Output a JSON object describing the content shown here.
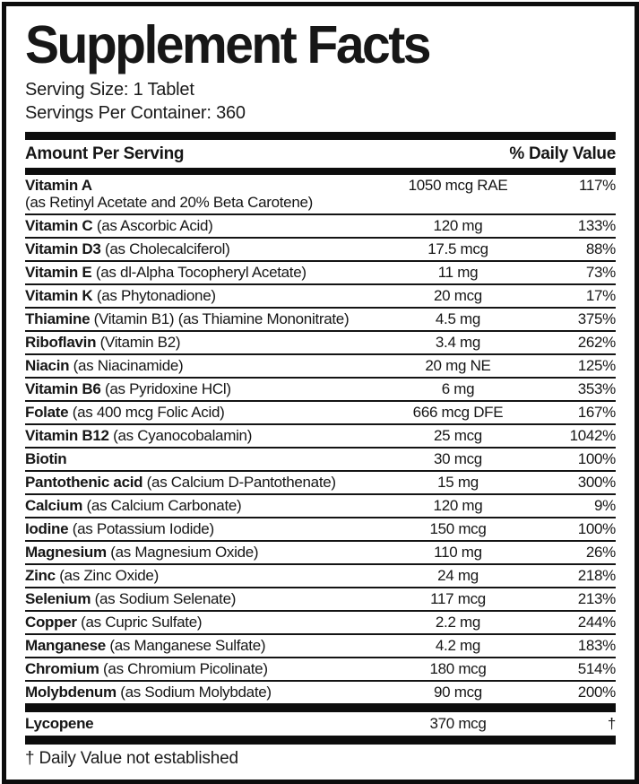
{
  "label": {
    "title": "Supplement Facts",
    "serving_size": "Serving Size: 1 Tablet",
    "servings_per_container": "Servings Per Container: 360",
    "header": {
      "amount_per_serving": "Amount Per Serving",
      "daily_value": "% Daily Value"
    },
    "rows": [
      {
        "name": "Vitamin A",
        "detail": "",
        "sub": "(as Retinyl Acetate and 20% Beta Carotene)",
        "amount": "1050 mcg RAE",
        "dv": "117%"
      },
      {
        "name": "Vitamin C",
        "detail": "(as Ascorbic Acid)",
        "amount": "120 mg",
        "dv": "133%"
      },
      {
        "name": "Vitamin D3",
        "detail": "(as Cholecalciferol)",
        "amount": "17.5 mcg",
        "dv": "88%"
      },
      {
        "name": "Vitamin E",
        "detail": "(as dl-Alpha Tocopheryl Acetate)",
        "amount": "11 mg",
        "dv": "73%"
      },
      {
        "name": "Vitamin K",
        "detail": "(as Phytonadione)",
        "amount": "20 mcg",
        "dv": "17%"
      },
      {
        "name": "Thiamine",
        "detail": "(Vitamin B1) (as Thiamine Mononitrate)",
        "amount": "4.5 mg",
        "dv": "375%"
      },
      {
        "name": "Riboflavin",
        "detail": "(Vitamin B2)",
        "amount": "3.4 mg",
        "dv": "262%"
      },
      {
        "name": "Niacin",
        "detail": "(as Niacinamide)",
        "amount": "20 mg NE",
        "dv": "125%"
      },
      {
        "name": "Vitamin B6",
        "detail": "(as Pyridoxine HCl)",
        "amount": "6 mg",
        "dv": "353%"
      },
      {
        "name": "Folate",
        "detail": "(as 400 mcg Folic Acid)",
        "amount": "666 mcg DFE",
        "dv": "167%"
      },
      {
        "name": "Vitamin B12",
        "detail": "(as Cyanocobalamin)",
        "amount": "25 mcg",
        "dv": "1042%"
      },
      {
        "name": "Biotin",
        "detail": "",
        "amount": "30 mcg",
        "dv": "100%"
      },
      {
        "name": "Pantothenic acid",
        "detail": "(as Calcium D-Pantothenate)",
        "amount": "15 mg",
        "dv": "300%"
      },
      {
        "name": "Calcium",
        "detail": "(as Calcium Carbonate)",
        "amount": "120 mg",
        "dv": "9%"
      },
      {
        "name": "Iodine",
        "detail": "(as Potassium Iodide)",
        "amount": "150 mcg",
        "dv": "100%"
      },
      {
        "name": "Magnesium",
        "detail": "(as Magnesium Oxide)",
        "amount": "110 mg",
        "dv": "26%"
      },
      {
        "name": "Zinc",
        "detail": "(as Zinc Oxide)",
        "amount": "24 mg",
        "dv": "218%"
      },
      {
        "name": "Selenium",
        "detail": "(as Sodium Selenate)",
        "amount": "117 mcg",
        "dv": "213%"
      },
      {
        "name": "Copper",
        "detail": "(as Cupric Sulfate)",
        "amount": "2.2 mg",
        "dv": "244%"
      },
      {
        "name": "Manganese",
        "detail": "(as Manganese Sulfate)",
        "amount": "4.2 mg",
        "dv": "183%"
      },
      {
        "name": "Chromium",
        "detail": "(as Chromium Picolinate)",
        "amount": "180 mcg",
        "dv": "514%"
      },
      {
        "name": "Molybdenum",
        "detail": "(as Sodium Molybdate)",
        "amount": "90 mcg",
        "dv": "200%"
      }
    ],
    "lycopene": {
      "name": "Lycopene",
      "detail": "",
      "amount": "370 mcg",
      "dv": "†"
    },
    "footnote": "† Daily Value not established",
    "colors": {
      "ink": "#0d0d0d",
      "background": "#ffffff"
    }
  }
}
